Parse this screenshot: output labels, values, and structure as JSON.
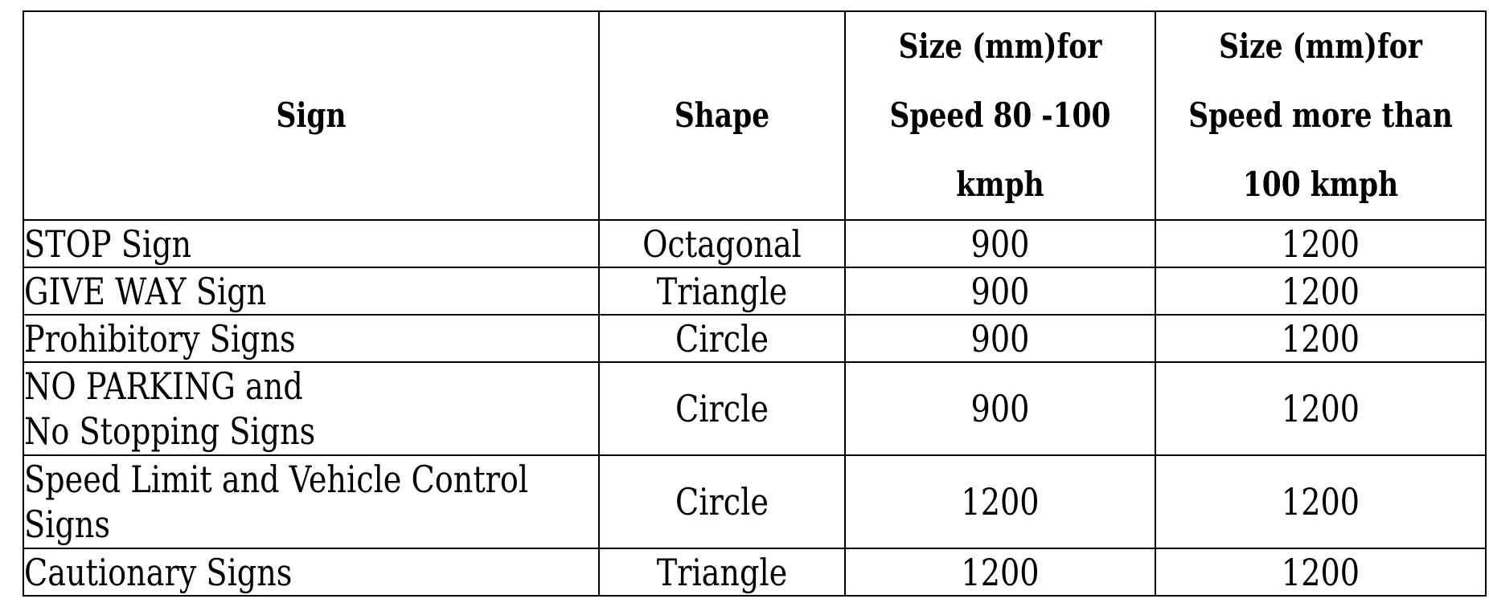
{
  "table": {
    "headers": [
      [
        "Sign"
      ],
      [
        "Shape"
      ],
      [
        "Size (mm)for",
        "Speed 80 -100",
        "kmph"
      ],
      [
        "Size (mm)for",
        "Speed more than",
        "100 kmph"
      ]
    ],
    "rows": [
      {
        "sign": [
          "STOP Sign"
        ],
        "shape": "Octagonal",
        "size_80_100": "900",
        "size_over_100": "1200"
      },
      {
        "sign": [
          "GIVE WAY Sign"
        ],
        "shape": "Triangle",
        "size_80_100": "900",
        "size_over_100": "1200"
      },
      {
        "sign": [
          "Prohibitory Signs"
        ],
        "shape": "Circle",
        "size_80_100": "900",
        "size_over_100": "1200"
      },
      {
        "sign": [
          "NO PARKING and",
          "No Stopping Signs"
        ],
        "shape": "Circle",
        "size_80_100": "900",
        "size_over_100": "1200"
      },
      {
        "sign": [
          "Speed Limit and Vehicle Control",
          "Signs"
        ],
        "shape": "Circle",
        "size_80_100": "1200",
        "size_over_100": "1200"
      },
      {
        "sign": [
          "Cautionary Signs"
        ],
        "shape": "Triangle",
        "size_80_100": "1200",
        "size_over_100": "1200"
      }
    ]
  }
}
